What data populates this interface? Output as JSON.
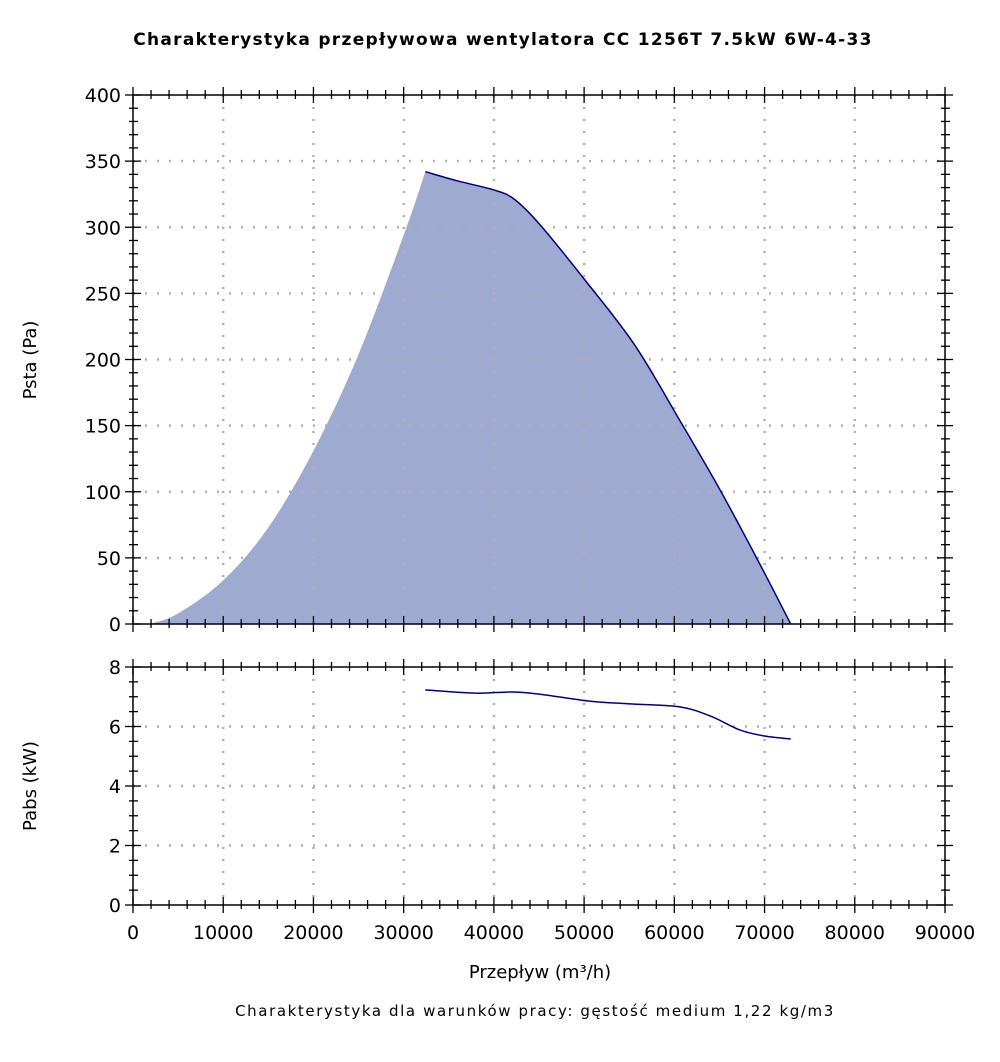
{
  "chart_data": [
    {
      "type": "area",
      "title": "Charakterystyka przepływowa wentylatora CC 1256T 7.5kW 6W-4-33",
      "xlabel": "Przepływ (m³/h)",
      "ylabel": "Psta (Pa)",
      "xlim": [
        0,
        90000
      ],
      "ylim": [
        0,
        400
      ],
      "xticks": [
        0,
        10000,
        20000,
        30000,
        40000,
        50000,
        60000,
        70000,
        80000,
        90000
      ],
      "yticks": [
        0,
        50,
        100,
        150,
        200,
        250,
        300,
        350,
        400
      ],
      "grid": true,
      "colors": {
        "fill": "#9eaad0",
        "line": "#000080",
        "grid": "#b0b0b0"
      },
      "lower_boundary": {
        "x": [
          1900,
          5000,
          10000,
          15000,
          20000,
          25000,
          30000,
          32400
        ],
        "y": [
          1,
          8,
          33,
          73,
          131,
          204,
          294,
          342
        ]
      },
      "series": [
        {
          "name": "Psta",
          "x": [
            32400,
            36000,
            40100,
            42300,
            45100,
            50100,
            55600,
            60600,
            65100,
            69500,
            72900
          ],
          "y": [
            342,
            335,
            328,
            321,
            302,
            260,
            211,
            154,
            101,
            45,
            0
          ]
        }
      ]
    },
    {
      "type": "line",
      "ylabel": "Pabs (kW)",
      "xlim": [
        0,
        90000
      ],
      "ylim": [
        0,
        8
      ],
      "xticks": [
        0,
        10000,
        20000,
        30000,
        40000,
        50000,
        60000,
        70000,
        80000,
        90000
      ],
      "yticks": [
        0,
        2,
        4,
        6,
        8
      ],
      "grid": true,
      "series": [
        {
          "name": "Pabs",
          "x": [
            32400,
            37900,
            42300,
            45700,
            50700,
            55100,
            60600,
            64000,
            67300,
            70000,
            72900
          ],
          "y": [
            7.23,
            7.12,
            7.16,
            7.06,
            6.85,
            6.76,
            6.66,
            6.35,
            5.88,
            5.68,
            5.58
          ]
        }
      ]
    }
  ],
  "footer": "Charakterystyka dla warunków pracy: gęstość medium 1,22 kg/m3"
}
